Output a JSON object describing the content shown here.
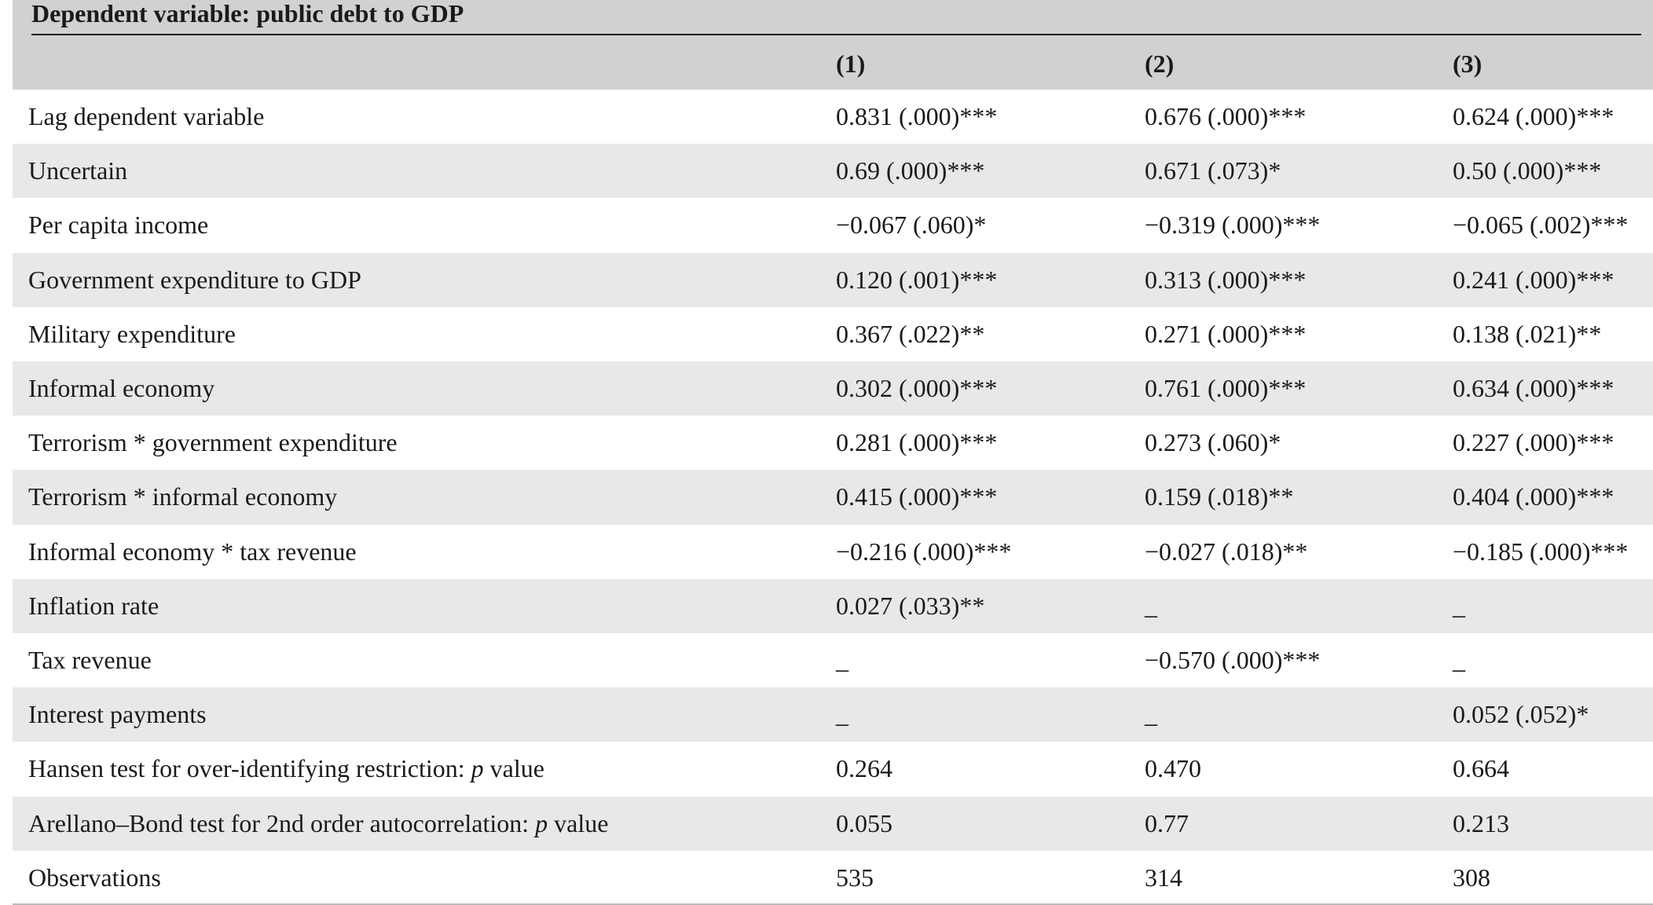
{
  "table": {
    "title": "Dependent variable: public debt to GDP",
    "columns": [
      "(1)",
      "(2)",
      "(3)"
    ],
    "rows": [
      {
        "label": [
          "Lag dependent variable"
        ],
        "cells": [
          "0.831 (.000)***",
          "0.676 (.000)***",
          "0.624 (.000)***"
        ]
      },
      {
        "label": [
          "Uncertain"
        ],
        "cells": [
          "0.69 (.000)***",
          "0.671 (.073)*",
          "0.50 (.000)***"
        ]
      },
      {
        "label": [
          "Per capita income"
        ],
        "cells": [
          "−0.067 (.060)*",
          "−0.319 (.000)***",
          "−0.065 (.002)***"
        ]
      },
      {
        "label": [
          "Government expenditure to GDP"
        ],
        "cells": [
          "0.120 (.001)***",
          "0.313 (.000)***",
          "0.241 (.000)***"
        ]
      },
      {
        "label": [
          "Military expenditure"
        ],
        "cells": [
          "0.367 (.022)**",
          "0.271 (.000)***",
          "0.138 (.021)**"
        ]
      },
      {
        "label": [
          "Informal economy"
        ],
        "cells": [
          "0.302 (.000)***",
          "0.761 (.000)***",
          "0.634 (.000)***"
        ]
      },
      {
        "label": [
          "Terrorism * government expenditure"
        ],
        "cells": [
          "0.281 (.000)***",
          "0.273 (.060)*",
          "0.227 (.000)***"
        ]
      },
      {
        "label": [
          "Terrorism * informal economy"
        ],
        "cells": [
          "0.415 (.000)***",
          "0.159 (.018)**",
          "0.404 (.000)***"
        ]
      },
      {
        "label": [
          "Informal economy * tax revenue"
        ],
        "cells": [
          "−0.216 (.000)***",
          "−0.027 (.018)**",
          "−0.185 (.000)***"
        ]
      },
      {
        "label": [
          "Inflation rate"
        ],
        "cells": [
          "0.027 (.033)**",
          "_",
          "_"
        ]
      },
      {
        "label": [
          "Tax revenue"
        ],
        "cells": [
          "_",
          "−0.570 (.000)***",
          "_"
        ]
      },
      {
        "label": [
          "Interest payments"
        ],
        "cells": [
          "_",
          "_",
          "0.052 (.052)*"
        ]
      },
      {
        "label": [
          "Hansen test for over-identifying restriction: ",
          "p",
          " value"
        ],
        "cells": [
          "0.264",
          "0.470",
          "0.664"
        ]
      },
      {
        "label": [
          "Arellano–Bond test for 2nd order autocorrelation: ",
          "p",
          " value"
        ],
        "cells": [
          "0.055",
          "0.77",
          "0.213"
        ]
      },
      {
        "label": [
          "Observations"
        ],
        "cells": [
          "535",
          "314",
          "308"
        ]
      }
    ]
  }
}
